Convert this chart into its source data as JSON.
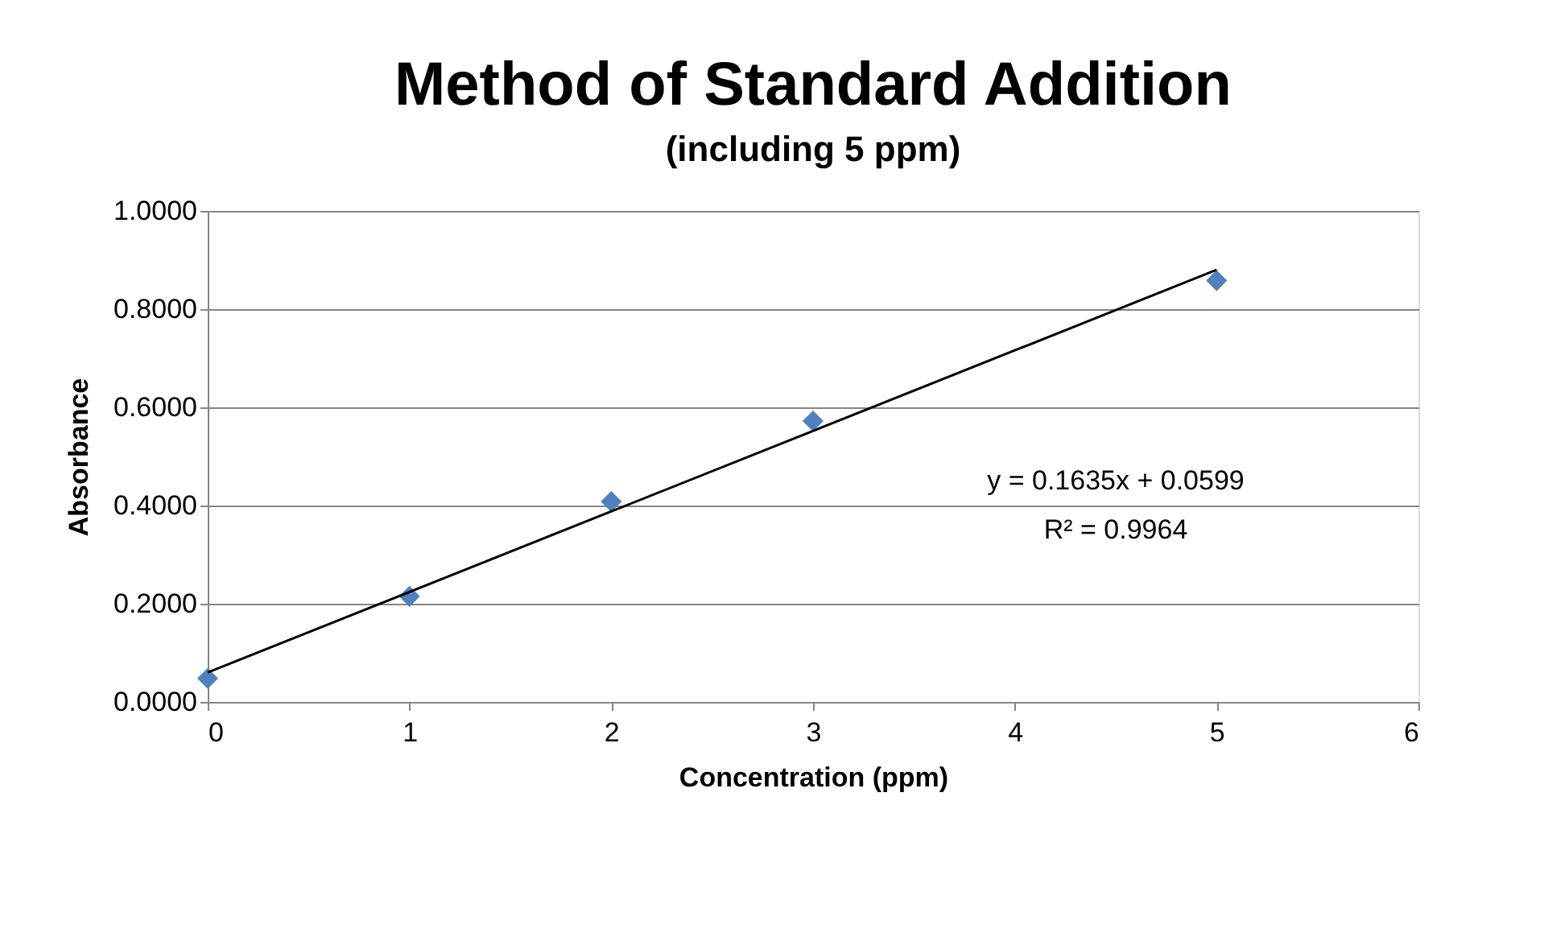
{
  "chart_data": {
    "type": "scatter",
    "title": "Method of Standard Addition",
    "subtitle": "(including 5 ppm)",
    "xlabel": "Concentration (ppm)",
    "ylabel": "Absorbance",
    "xlim": [
      0,
      6
    ],
    "xticks": [
      0,
      1,
      2,
      3,
      4,
      5,
      6
    ],
    "ylim": [
      0,
      1
    ],
    "yticks": [
      {
        "value": 0,
        "label": "0.0000"
      },
      {
        "value": 0.2,
        "label": "0.2000"
      },
      {
        "value": 0.4,
        "label": "0.4000"
      },
      {
        "value": 0.6,
        "label": "0.6000"
      },
      {
        "value": 0.8,
        "label": "0.8000"
      },
      {
        "value": 1,
        "label": "1.0000"
      }
    ],
    "grid": "y",
    "legend": false,
    "series": [
      {
        "color": "#4f81bd",
        "marker": "diamond",
        "x": [
          0,
          1,
          2,
          3,
          5
        ],
        "values": [
          0.048,
          0.215,
          0.408,
          0.572,
          0.858
        ]
      },
      {
        "type": "line",
        "color": "#000000",
        "marker": "none",
        "line_style": "solid",
        "x": [
          0,
          5
        ],
        "values": [
          0.06,
          0.88
        ]
      }
    ],
    "annotations": [
      "y = 0.1635x + 0.0599",
      "R² = 0.9964"
    ]
  }
}
